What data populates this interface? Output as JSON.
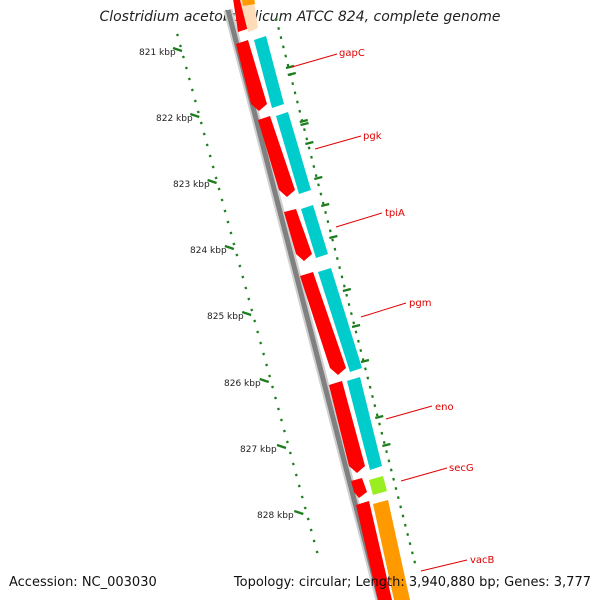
{
  "title": "Clostridium acetobutylicum ATCC 824, complete genome",
  "accession": "Accession: NC_003030",
  "topology": "Topology: circular; Length: 3,940,880 bp; Genes: 3,777",
  "colors": {
    "backbone": "#7f7f7f",
    "label_line": "#e00000",
    "ticks": "#1e7d1e",
    "strand_forward": "#ff0000",
    "strand_cds": "#00cccc",
    "secG_rna": "#99ee22",
    "vacB_orange": "#ff9900"
  },
  "scale_labels": [
    "821 kbp",
    "822 kbp",
    "823 kbp",
    "824 kbp",
    "825 kbp",
    "826 kbp",
    "827 kbp",
    "828 kbp"
  ],
  "genes": [
    {
      "name": "gapC"
    },
    {
      "name": "pgk"
    },
    {
      "name": "tpiA"
    },
    {
      "name": "pgm"
    },
    {
      "name": "eno"
    },
    {
      "name": "secG"
    },
    {
      "name": "vacB"
    }
  ]
}
